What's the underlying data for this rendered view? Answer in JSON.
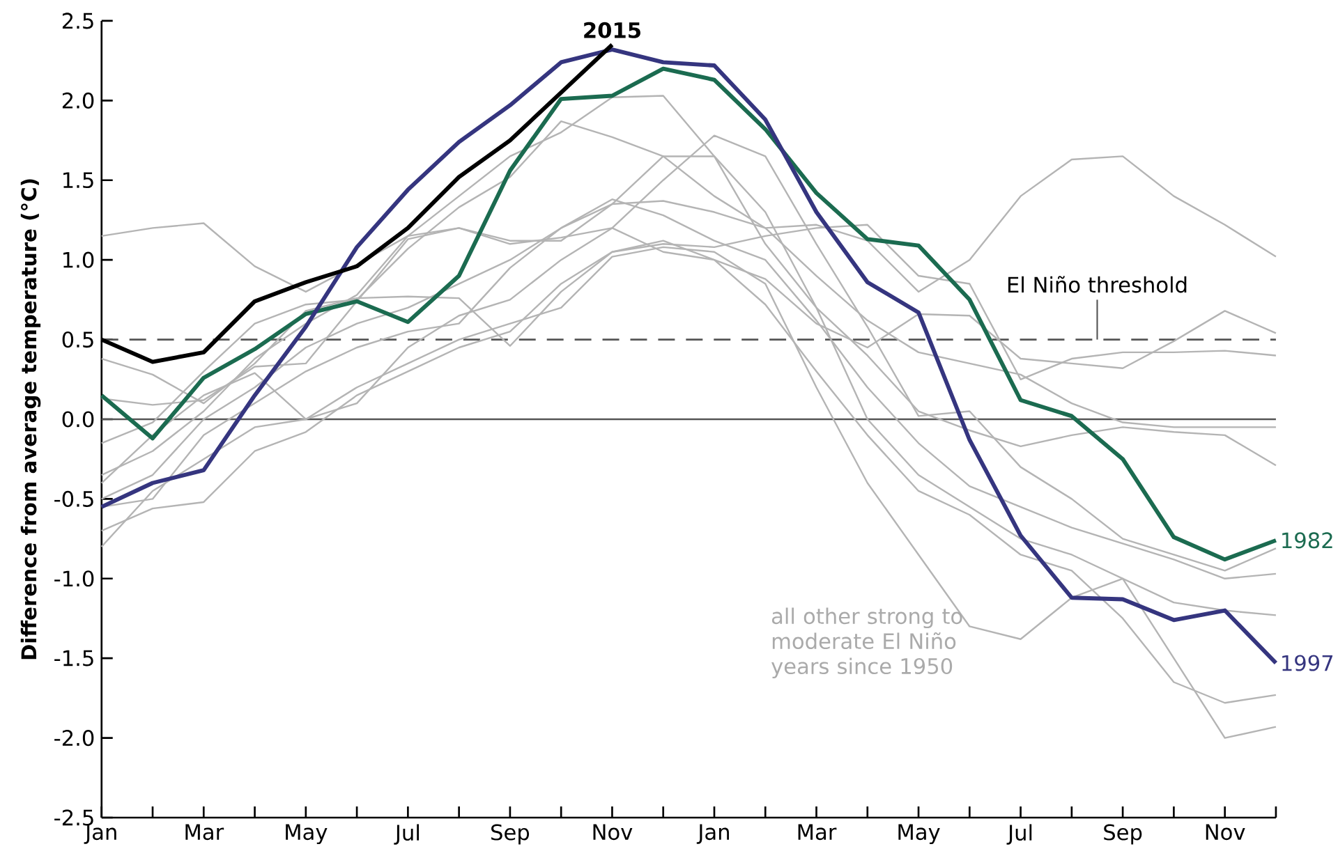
{
  "chart_data": {
    "type": "line",
    "ylabel": "Difference from average temperature (°C)",
    "categories": [
      "Jan",
      null,
      "Mar",
      null,
      "May",
      null,
      "Jul",
      null,
      "Sep",
      null,
      "Nov",
      null,
      "Jan",
      null,
      "Mar",
      null,
      "May",
      null,
      "Jul",
      null,
      "Sep",
      null,
      "Nov",
      null
    ],
    "ylim": [
      -2.5,
      2.5
    ],
    "yticks": [
      {
        "value": -2.5,
        "label": "-2.5"
      },
      {
        "value": -2,
        "label": "-2.0"
      },
      {
        "value": -1.5,
        "label": "-1.5"
      },
      {
        "value": -1,
        "label": "-1.0"
      },
      {
        "value": -0.5,
        "label": "-0.5"
      },
      {
        "value": 0,
        "label": "0.0"
      },
      {
        "value": 0.5,
        "label": "0.5"
      },
      {
        "value": 1,
        "label": "1.0"
      },
      {
        "value": 1.5,
        "label": "1.5"
      },
      {
        "value": 2,
        "label": "2.0"
      },
      {
        "value": 2.5,
        "label": "2.5"
      }
    ],
    "ref_lines": [
      {
        "axis": "y",
        "value": 0,
        "color": "#555555",
        "line_style": "solid"
      },
      {
        "axis": "y",
        "value": 0.5,
        "label": "El Niño threshold",
        "color": "#555555",
        "line_style": "dashed"
      }
    ],
    "annotations": [
      "all other strong to moderate El Niño years since 1950"
    ],
    "series": [
      {
        "color": "#b4b4b4",
        "values": [
          1.15,
          1.2,
          1.23,
          0.96,
          0.8,
          0.97,
          1.15,
          1.2,
          1.12,
          1.12,
          1.35,
          1.37,
          1.3,
          1.2,
          1.22,
          1.12,
          0.8,
          1.0,
          1.4,
          1.63,
          1.65,
          1.4,
          1.22,
          1.02
        ]
      },
      {
        "color": "#b4b4b4",
        "values": [
          0.38,
          0.28,
          0.1,
          0.35,
          0.68,
          0.76,
          0.77,
          0.76,
          0.46,
          0.8,
          1.05,
          1.1,
          1.08,
          1.15,
          1.2,
          1.22,
          0.9,
          0.85,
          0.25,
          0.38,
          0.42,
          0.42,
          0.43,
          0.4
        ]
      },
      {
        "color": "#b4b4b4",
        "values": [
          0.13,
          0.09,
          0.12,
          0.33,
          0.35,
          0.74,
          1.13,
          1.2,
          1.1,
          1.14,
          1.2,
          1.05,
          1.0,
          0.88,
          0.6,
          0.45,
          0.66,
          0.65,
          0.38,
          0.35,
          0.32,
          0.49,
          0.68,
          0.54
        ]
      },
      {
        "color": "#b4b4b4",
        "values": [
          -0.15,
          -0.02,
          0.3,
          0.6,
          0.72,
          0.75,
          1.07,
          1.33,
          1.52,
          1.87,
          1.77,
          1.65,
          1.4,
          1.2,
          0.9,
          0.62,
          0.42,
          0.35,
          0.28,
          0.1,
          -0.02,
          -0.05,
          -0.05,
          -0.05
        ]
      },
      {
        "color": "#b4b4b4",
        "values": [
          -0.35,
          -0.2,
          0.05,
          0.38,
          0.6,
          0.78,
          1.15,
          1.4,
          1.65,
          1.8,
          2.02,
          2.03,
          1.65,
          1.1,
          0.7,
          0.4,
          0.05,
          -0.07,
          -0.17,
          -0.1,
          -0.05,
          -0.08,
          -0.1,
          -0.29
        ]
      },
      {
        "color": "#b4b4b4",
        "values": [
          -0.4,
          -0.1,
          0.15,
          0.29,
          0.0,
          0.1,
          0.45,
          0.65,
          0.75,
          1.0,
          1.2,
          1.5,
          1.78,
          1.65,
          1.1,
          0.58,
          0.02,
          0.05,
          -0.3,
          -0.5,
          -0.75,
          -0.85,
          -0.95,
          -0.81
        ]
      },
      {
        "color": "#b4b4b4",
        "values": [
          -0.5,
          -0.35,
          0.0,
          0.2,
          0.45,
          0.6,
          0.7,
          0.85,
          1.0,
          1.2,
          1.35,
          1.65,
          1.65,
          1.3,
          0.7,
          0.0,
          -0.35,
          -0.55,
          -0.75,
          -0.85,
          -1.0,
          -1.15,
          -1.2,
          -1.23
        ]
      },
      {
        "color": "#b4b4b4",
        "values": [
          -0.55,
          -0.5,
          -0.1,
          0.1,
          0.3,
          0.45,
          0.55,
          0.6,
          0.95,
          1.2,
          1.38,
          1.28,
          1.12,
          1.0,
          0.62,
          0.2,
          -0.15,
          -0.42,
          -0.55,
          -0.68,
          -0.78,
          -0.88,
          -1.0,
          -0.97
        ]
      },
      {
        "color": "#b4b4b4",
        "values": [
          -0.7,
          -0.56,
          -0.52,
          -0.2,
          -0.08,
          0.15,
          0.3,
          0.45,
          0.55,
          0.85,
          1.05,
          1.12,
          1.0,
          0.72,
          0.3,
          -0.1,
          -0.45,
          -0.6,
          -0.85,
          -0.95,
          -1.25,
          -1.65,
          -1.78,
          -1.73
        ]
      },
      {
        "color": "#b4b4b4",
        "values": [
          -0.8,
          -0.45,
          -0.25,
          -0.05,
          0.0,
          0.2,
          0.35,
          0.5,
          0.6,
          0.7,
          1.02,
          1.08,
          1.05,
          0.85,
          0.2,
          -0.4,
          -0.85,
          -1.3,
          -1.38,
          -1.12,
          -1.0,
          -1.5,
          -2.0,
          -1.93
        ]
      },
      {
        "name": "1982",
        "color": "#1b6b50",
        "values": [
          0.15,
          -0.12,
          0.26,
          0.44,
          0.66,
          0.74,
          0.61,
          0.9,
          1.56,
          2.01,
          2.03,
          2.2,
          2.13,
          1.82,
          1.42,
          1.13,
          1.09,
          0.75,
          0.12,
          0.02,
          -0.25,
          -0.74,
          -0.88,
          -0.76
        ]
      },
      {
        "name": "1997",
        "color": "#35357f",
        "values": [
          -0.55,
          -0.4,
          -0.32,
          0.15,
          0.58,
          1.08,
          1.44,
          1.74,
          1.97,
          2.24,
          2.32,
          2.24,
          2.22,
          1.88,
          1.3,
          0.86,
          0.67,
          -0.13,
          -0.73,
          -1.12,
          -1.13,
          -1.26,
          -1.2,
          -1.53
        ]
      },
      {
        "name": "2015",
        "color": "#000000",
        "values": [
          0.5,
          0.36,
          0.42,
          0.74,
          0.86,
          0.96,
          1.2,
          1.52,
          1.75,
          2.05,
          2.35,
          null,
          null,
          null,
          null,
          null,
          null,
          null,
          null,
          null,
          null,
          null,
          null,
          null
        ]
      }
    ]
  }
}
